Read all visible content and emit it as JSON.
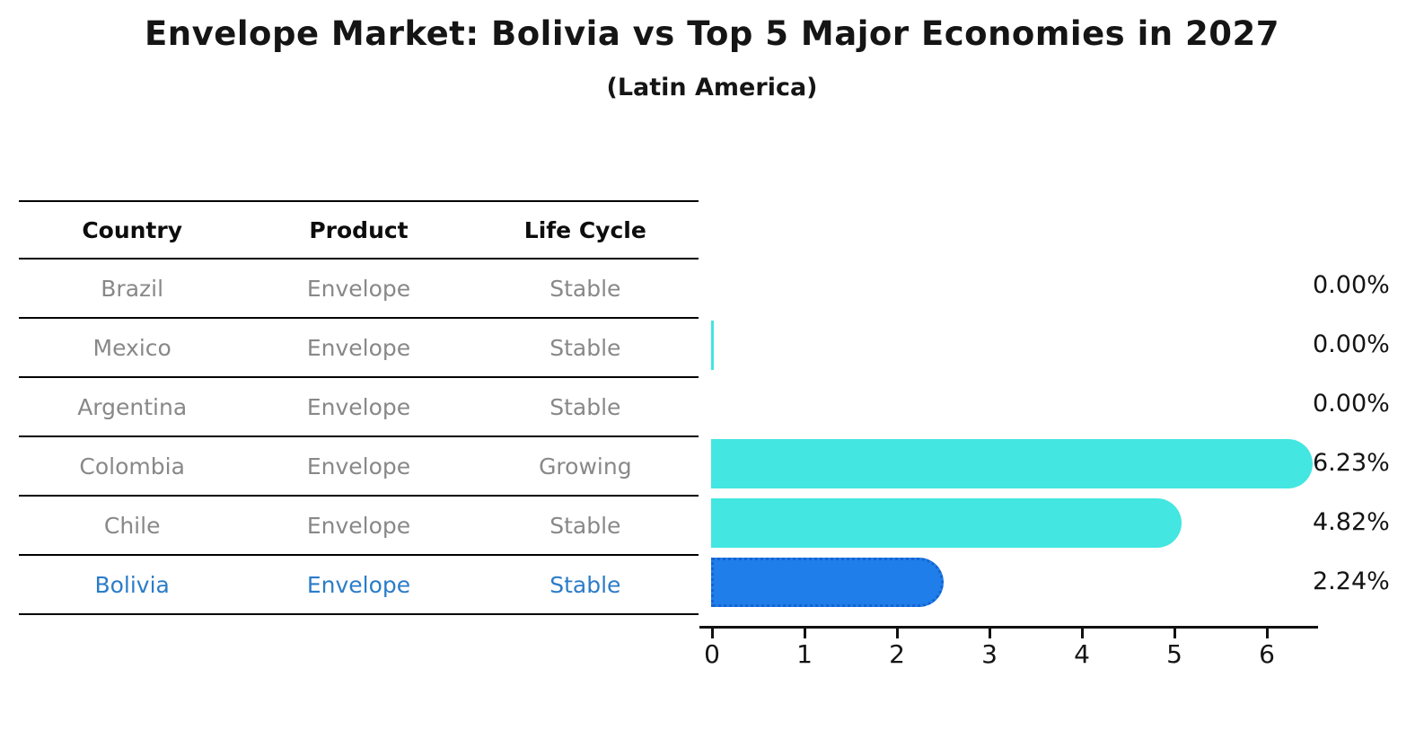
{
  "header": {
    "title": "Envelope Market: Bolivia vs Top 5 Major Economies in 2027",
    "subtitle": "(Latin America)"
  },
  "table": {
    "columns": [
      "Country",
      "Product",
      "Life Cycle"
    ],
    "rows": [
      {
        "country": "Brazil",
        "product": "Envelope",
        "life_cycle": "Stable",
        "highlight": false
      },
      {
        "country": "Mexico",
        "product": "Envelope",
        "life_cycle": "Stable",
        "highlight": false
      },
      {
        "country": "Argentina",
        "product": "Envelope",
        "life_cycle": "Stable",
        "highlight": false
      },
      {
        "country": "Colombia",
        "product": "Envelope",
        "life_cycle": "Growing",
        "highlight": false
      },
      {
        "country": "Chile",
        "product": "Envelope",
        "life_cycle": "Stable",
        "highlight": false
      },
      {
        "country": "Bolivia",
        "product": "Envelope",
        "life_cycle": "Stable",
        "highlight": true
      }
    ]
  },
  "chart_data": {
    "type": "bar",
    "orientation": "horizontal",
    "title": "Envelope Market: Bolivia vs Top 5 Major Economies in 2027",
    "subtitle": "(Latin America)",
    "categories": [
      "Brazil",
      "Mexico",
      "Argentina",
      "Colombia",
      "Chile",
      "Bolivia"
    ],
    "values": [
      0.0,
      0.0,
      0.0,
      6.23,
      4.82,
      2.24
    ],
    "value_labels": [
      "0.00%",
      "0.00%",
      "0.00%",
      "6.23%",
      "4.82%",
      "2.24%"
    ],
    "x_ticks": [
      "0",
      "1",
      "2",
      "3",
      "4",
      "5",
      "6"
    ],
    "xlim": [
      0,
      6.5
    ],
    "grid": false,
    "legend": null,
    "bar_color_default": "#43e6e0",
    "bar_color_highlight": "#1f7ee9",
    "highlight_index": 5,
    "highlight_text_color": "#2b7cc9",
    "zero_sliver_indices": [
      1
    ]
  },
  "colors": {
    "row_text": "#888888",
    "line": "#000000",
    "label_text": "#141414"
  }
}
